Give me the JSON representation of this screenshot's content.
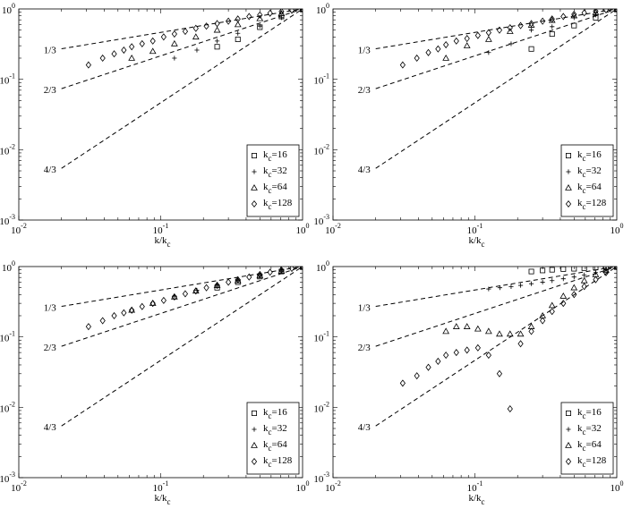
{
  "chart_data": [
    {
      "type": "scatter",
      "xscale": "log",
      "yscale": "log",
      "xlim": [
        0.01,
        1
      ],
      "ylim": [
        0.001,
        1
      ],
      "xlabel": "k/k",
      "xlabel_sub": "c",
      "xticks": [
        {
          "base": "10",
          "exp": "-2"
        },
        {
          "base": "10",
          "exp": "-1"
        },
        {
          "base": "10",
          "exp": "0"
        }
      ],
      "yticks": [
        {
          "base": "10",
          "exp": "-3"
        },
        {
          "base": "10",
          "exp": "-2"
        },
        {
          "base": "10",
          "exp": "-1"
        },
        {
          "base": "10",
          "exp": "0"
        }
      ],
      "lines": [
        {
          "label": "1/3",
          "slope": 0.3333,
          "x0": 0.02
        },
        {
          "label": "2/3",
          "slope": 0.6667,
          "x0": 0.02
        },
        {
          "label": "4/3",
          "slope": 1.3333,
          "x0": 0.02
        }
      ],
      "legend_position": "bottom-right",
      "series": [
        {
          "name": "k",
          "name_sub": "c",
          "name_suffix": "=16",
          "marker": "square",
          "x": [
            0.25,
            0.35,
            0.5,
            0.71,
            1.0
          ],
          "y": [
            0.29,
            0.37,
            0.55,
            0.78,
            1.0
          ]
        },
        {
          "name": "k",
          "name_sub": "c",
          "name_suffix": "=32",
          "marker": "plus",
          "x": [
            0.125,
            0.18,
            0.25,
            0.35,
            0.5,
            0.71,
            1.0
          ],
          "y": [
            0.2,
            0.26,
            0.35,
            0.45,
            0.57,
            0.75,
            1.0
          ]
        },
        {
          "name": "k",
          "name_sub": "c",
          "name_suffix": "=64",
          "marker": "triangle",
          "x": [
            0.0625,
            0.088,
            0.125,
            0.177,
            0.25,
            0.35,
            0.5,
            0.71,
            1.0
          ],
          "y": [
            0.2,
            0.25,
            0.32,
            0.4,
            0.5,
            0.6,
            0.73,
            0.86,
            1.0
          ]
        },
        {
          "name": "k",
          "name_sub": "c",
          "name_suffix": "=128",
          "marker": "diamond",
          "x": [
            0.031,
            0.039,
            0.047,
            0.055,
            0.0625,
            0.074,
            0.088,
            0.105,
            0.125,
            0.149,
            0.177,
            0.21,
            0.25,
            0.3,
            0.35,
            0.42,
            0.5,
            0.59,
            0.71,
            0.84,
            1.0
          ],
          "y": [
            0.16,
            0.2,
            0.23,
            0.26,
            0.29,
            0.32,
            0.35,
            0.4,
            0.44,
            0.48,
            0.53,
            0.57,
            0.62,
            0.67,
            0.72,
            0.78,
            0.82,
            0.87,
            0.92,
            0.96,
            1.0
          ]
        }
      ]
    },
    {
      "type": "scatter",
      "xscale": "log",
      "yscale": "log",
      "xlim": [
        0.01,
        1
      ],
      "ylim": [
        0.001,
        1
      ],
      "xlabel": "k/k",
      "xlabel_sub": "c",
      "xticks": [
        {
          "base": "10",
          "exp": "-2"
        },
        {
          "base": "10",
          "exp": "-1"
        },
        {
          "base": "10",
          "exp": "0"
        }
      ],
      "yticks": [
        {
          "base": "10",
          "exp": "-3"
        },
        {
          "base": "10",
          "exp": "-2"
        },
        {
          "base": "10",
          "exp": "-1"
        },
        {
          "base": "10",
          "exp": "0"
        }
      ],
      "lines": [
        {
          "label": "1/3",
          "slope": 0.3333,
          "x0": 0.02
        },
        {
          "label": "2/3",
          "slope": 0.6667,
          "x0": 0.02
        },
        {
          "label": "4/3",
          "slope": 1.3333,
          "x0": 0.02
        }
      ],
      "legend_position": "bottom-right",
      "series": [
        {
          "name": "k",
          "name_sub": "c",
          "name_suffix": "=16",
          "marker": "square",
          "x": [
            0.25,
            0.35,
            0.5,
            0.71,
            1.0
          ],
          "y": [
            0.27,
            0.44,
            0.58,
            0.75,
            1.0
          ]
        },
        {
          "name": "k",
          "name_sub": "c",
          "name_suffix": "=32",
          "marker": "plus",
          "x": [
            0.125,
            0.18,
            0.25,
            0.35,
            0.5,
            0.71,
            1.0
          ],
          "y": [
            0.24,
            0.32,
            0.5,
            0.56,
            0.75,
            0.82,
            1.0
          ]
        },
        {
          "name": "k",
          "name_sub": "c",
          "name_suffix": "=64",
          "marker": "triangle",
          "x": [
            0.0625,
            0.088,
            0.125,
            0.177,
            0.25,
            0.35,
            0.5,
            0.71,
            1.0
          ],
          "y": [
            0.2,
            0.3,
            0.37,
            0.48,
            0.59,
            0.69,
            0.8,
            0.89,
            1.0
          ]
        },
        {
          "name": "k",
          "name_sub": "c",
          "name_suffix": "=128",
          "marker": "diamond",
          "x": [
            0.031,
            0.039,
            0.047,
            0.055,
            0.0625,
            0.074,
            0.088,
            0.105,
            0.125,
            0.149,
            0.177,
            0.21,
            0.25,
            0.3,
            0.35,
            0.42,
            0.5,
            0.59,
            0.71,
            0.84,
            1.0
          ],
          "y": [
            0.16,
            0.2,
            0.24,
            0.27,
            0.31,
            0.35,
            0.38,
            0.42,
            0.46,
            0.5,
            0.54,
            0.58,
            0.62,
            0.67,
            0.72,
            0.78,
            0.84,
            0.88,
            0.93,
            0.97,
            1.0
          ]
        }
      ]
    },
    {
      "type": "scatter",
      "xscale": "log",
      "yscale": "log",
      "xlim": [
        0.01,
        1
      ],
      "ylim": [
        0.001,
        1
      ],
      "xlabel": "k/k",
      "xlabel_sub": "c",
      "xticks": [
        {
          "base": "10",
          "exp": "-2"
        },
        {
          "base": "10",
          "exp": "-1"
        },
        {
          "base": "10",
          "exp": "0"
        }
      ],
      "yticks": [
        {
          "base": "10",
          "exp": "-3"
        },
        {
          "base": "10",
          "exp": "-2"
        },
        {
          "base": "10",
          "exp": "-1"
        },
        {
          "base": "10",
          "exp": "0"
        }
      ],
      "lines": [
        {
          "label": "1/3",
          "slope": 0.3333,
          "x0": 0.02
        },
        {
          "label": "2/3",
          "slope": 0.6667,
          "x0": 0.02
        },
        {
          "label": "4/3",
          "slope": 1.3333,
          "x0": 0.02
        }
      ],
      "legend_position": "bottom-right",
      "series": [
        {
          "name": "k",
          "name_sub": "c",
          "name_suffix": "=16",
          "marker": "square",
          "x": [
            0.25,
            0.35,
            0.5,
            0.71,
            1.0
          ],
          "y": [
            0.5,
            0.6,
            0.72,
            0.85,
            1.0
          ]
        },
        {
          "name": "k",
          "name_sub": "c",
          "name_suffix": "=32",
          "marker": "plus",
          "x": [
            0.125,
            0.18,
            0.25,
            0.35,
            0.5,
            0.71,
            1.0
          ],
          "y": [
            0.38,
            0.46,
            0.55,
            0.63,
            0.74,
            0.86,
            1.0
          ]
        },
        {
          "name": "k",
          "name_sub": "c",
          "name_suffix": "=64",
          "marker": "triangle",
          "x": [
            0.0625,
            0.088,
            0.125,
            0.177,
            0.25,
            0.35,
            0.5,
            0.71,
            1.0
          ],
          "y": [
            0.24,
            0.3,
            0.37,
            0.45,
            0.54,
            0.63,
            0.74,
            0.86,
            1.0
          ]
        },
        {
          "name": "k",
          "name_sub": "c",
          "name_suffix": "=128",
          "marker": "diamond",
          "x": [
            0.031,
            0.039,
            0.047,
            0.055,
            0.0625,
            0.074,
            0.088,
            0.105,
            0.125,
            0.149,
            0.177,
            0.21,
            0.25,
            0.3,
            0.35,
            0.42,
            0.5,
            0.59,
            0.71,
            0.84,
            1.0
          ],
          "y": [
            0.14,
            0.17,
            0.2,
            0.22,
            0.24,
            0.27,
            0.3,
            0.33,
            0.37,
            0.41,
            0.45,
            0.5,
            0.54,
            0.6,
            0.65,
            0.71,
            0.77,
            0.83,
            0.89,
            0.94,
            1.0
          ]
        }
      ]
    },
    {
      "type": "scatter",
      "xscale": "log",
      "yscale": "log",
      "xlim": [
        0.01,
        1
      ],
      "ylim": [
        0.001,
        1
      ],
      "xlabel": "k/k",
      "xlabel_sub": "c",
      "xticks": [
        {
          "base": "10",
          "exp": "-2"
        },
        {
          "base": "10",
          "exp": "-1"
        },
        {
          "base": "10",
          "exp": "0"
        }
      ],
      "yticks": [
        {
          "base": "10",
          "exp": "-3"
        },
        {
          "base": "10",
          "exp": "-2"
        },
        {
          "base": "10",
          "exp": "-1"
        },
        {
          "base": "10",
          "exp": "0"
        }
      ],
      "lines": [
        {
          "label": "1/3",
          "slope": 0.3333,
          "x0": 0.02
        },
        {
          "label": "2/3",
          "slope": 0.6667,
          "x0": 0.02
        },
        {
          "label": "4/3",
          "slope": 1.3333,
          "x0": 0.02
        }
      ],
      "legend_position": "bottom-right",
      "series": [
        {
          "name": "k",
          "name_sub": "c",
          "name_suffix": "=16",
          "marker": "square",
          "x": [
            0.25,
            0.3,
            0.35,
            0.42,
            0.5,
            0.59,
            0.71,
            0.84,
            1.0
          ],
          "y": [
            0.85,
            0.88,
            0.9,
            0.92,
            0.93,
            0.95,
            0.97,
            0.98,
            1.0
          ]
        },
        {
          "name": "k",
          "name_sub": "c",
          "name_suffix": "=32",
          "marker": "plus",
          "x": [
            0.125,
            0.15,
            0.18,
            0.21,
            0.25,
            0.3,
            0.35,
            0.42,
            0.5,
            0.59,
            0.71,
            0.84,
            1.0
          ],
          "y": [
            0.48,
            0.5,
            0.52,
            0.54,
            0.57,
            0.6,
            0.63,
            0.67,
            0.71,
            0.76,
            0.82,
            0.9,
            1.0
          ]
        },
        {
          "name": "k",
          "name_sub": "c",
          "name_suffix": "=64",
          "marker": "triangle",
          "x": [
            0.0625,
            0.074,
            0.088,
            0.105,
            0.125,
            0.149,
            0.177,
            0.21,
            0.25,
            0.3,
            0.35,
            0.42,
            0.5,
            0.59,
            0.71,
            0.84,
            1.0
          ],
          "y": [
            0.12,
            0.14,
            0.14,
            0.13,
            0.12,
            0.11,
            0.11,
            0.11,
            0.14,
            0.2,
            0.28,
            0.38,
            0.5,
            0.63,
            0.77,
            0.89,
            1.0
          ]
        },
        {
          "name": "k",
          "name_sub": "c",
          "name_suffix": "=128",
          "marker": "diamond",
          "x": [
            0.031,
            0.039,
            0.047,
            0.055,
            0.0625,
            0.074,
            0.088,
            0.105,
            0.125,
            0.149,
            0.177,
            0.21,
            0.25,
            0.3,
            0.35,
            0.42,
            0.5,
            0.59,
            0.71,
            0.84,
            1.0
          ],
          "y": [
            0.022,
            0.028,
            0.037,
            0.045,
            0.055,
            0.06,
            0.065,
            0.07,
            0.055,
            0.03,
            0.0095,
            0.08,
            0.12,
            0.17,
            0.23,
            0.3,
            0.4,
            0.52,
            0.65,
            0.82,
            1.0
          ]
        }
      ]
    }
  ]
}
